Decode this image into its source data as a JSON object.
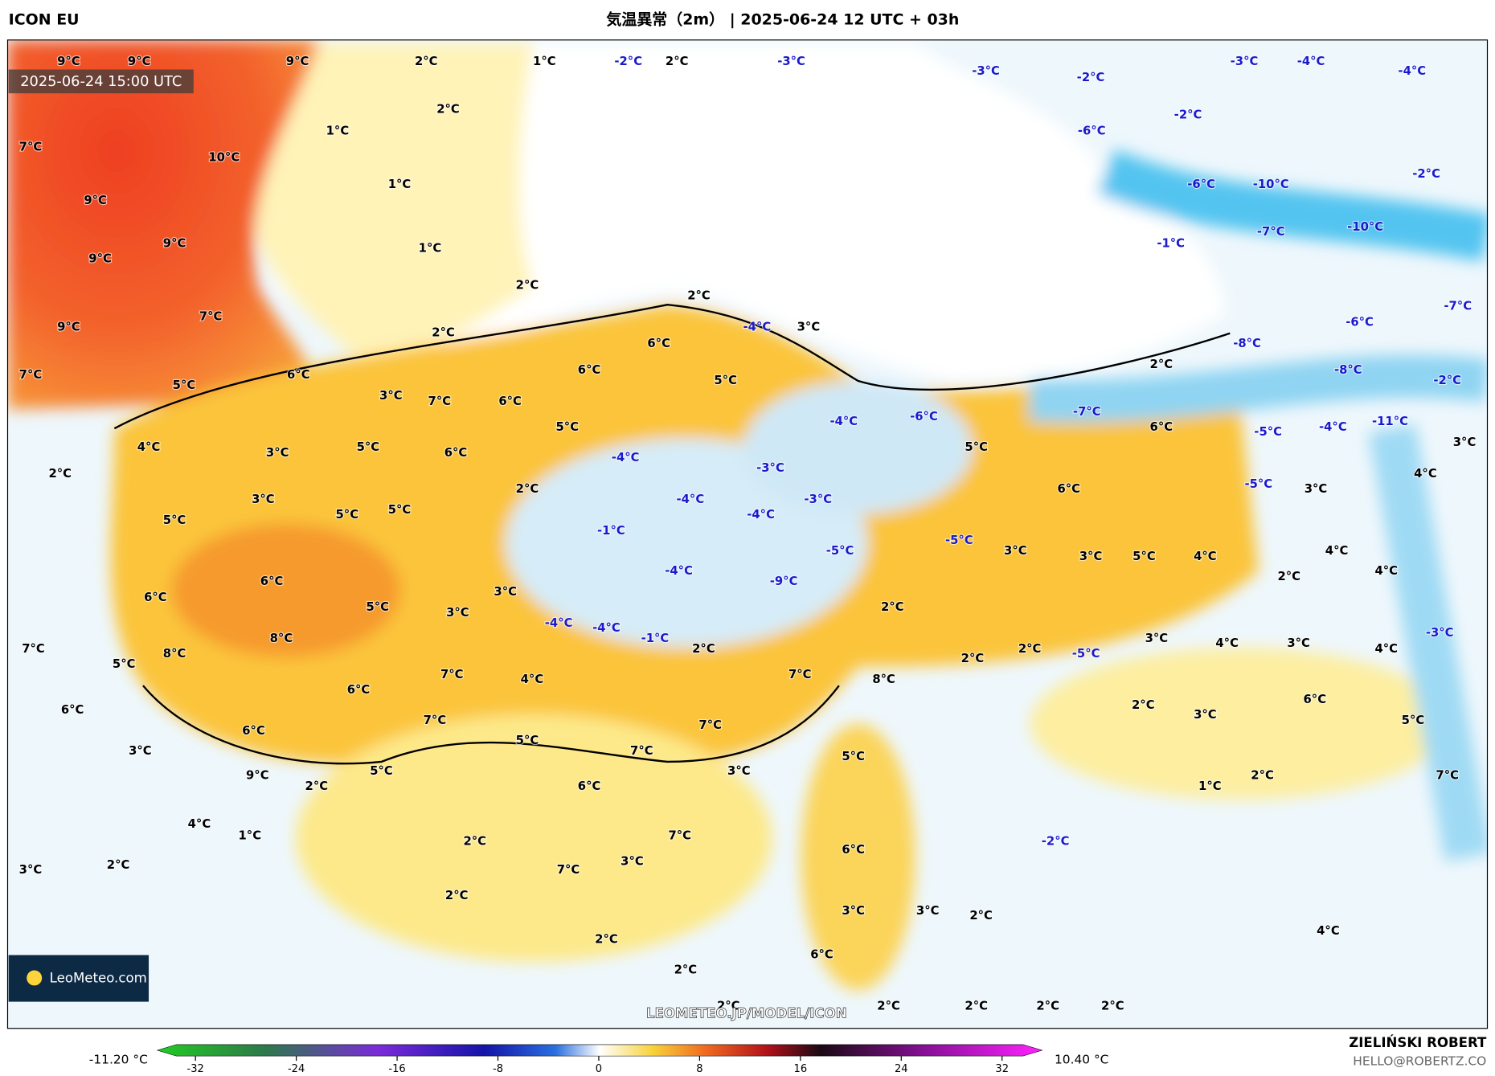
{
  "header": {
    "model": "ICON EU",
    "title": "気温異常（2m） | 2025-06-24 12 UTC + 03h",
    "timestamp": "2025-06-24 15:00 UTC"
  },
  "map": {
    "labels": [
      "9°C",
      "9°C",
      "9°C",
      "2°C",
      "1°C",
      "-2°C",
      "2°C",
      "-3°C",
      "-3°C",
      "-2°C",
      "-3°C",
      "-4°C",
      "-4°C",
      "7°C",
      "1°C",
      "2°C",
      "10°C",
      "-6°C",
      "-2°C",
      "9°C",
      "1°C",
      "-6°C",
      "-10°C",
      "-2°C",
      "9°C",
      "9°C",
      "1°C",
      "-1°C",
      "-7°C",
      "-10°C",
      "2°C",
      "2°C",
      "7°C",
      "-7°C",
      "9°C",
      "2°C",
      "-4°C",
      "3°C",
      "6°C",
      "-6°C",
      "-8°C",
      "7°C",
      "5°C",
      "6°C",
      "6°C",
      "5°C",
      "2°C",
      "-8°C",
      "-2°C",
      "3°C",
      "7°C",
      "6°C",
      "5°C",
      "-4°C",
      "-6°C",
      "-7°C",
      "6°C",
      "-5°C",
      "-4°C",
      "-11°C",
      "3°C",
      "4°C",
      "3°C",
      "5°C",
      "6°C",
      "5°C",
      "2°C",
      "-4°C",
      "-3°C",
      "4°C",
      "-5°C",
      "3°C",
      "6°C",
      "3°C",
      "2°C",
      "-4°C",
      "-3°C",
      "-4°C",
      "5°C",
      "5°C",
      "5°C",
      "-1°C",
      "-5°C",
      "3°C",
      "3°C",
      "5°C",
      "4°C",
      "4°C",
      "-5°C",
      "-4°C",
      "4°C",
      "2°C",
      "6°C",
      "-9°C",
      "6°C",
      "3°C",
      "2°C",
      "5°C",
      "3°C",
      "-4°C",
      "-4°C",
      "-1°C",
      "3°C",
      "4°C",
      "3°C",
      "4°C",
      "-3°C",
      "7°C",
      "8°C",
      "8°C",
      "5°C",
      "2°C",
      "2°C",
      "2°C",
      "-5°C",
      "7°C",
      "4°C",
      "7°C",
      "8°C",
      "6°C",
      "6°C",
      "7°C",
      "2°C",
      "3°C",
      "6°C",
      "5°C",
      "6°C",
      "5°C",
      "7°C",
      "7°C",
      "3°C",
      "5°C",
      "3°C",
      "5°C",
      "9°C",
      "2°C",
      "6°C",
      "1°C",
      "2°C",
      "7°C",
      "4°C",
      "1°C",
      "7°C",
      "2°C",
      "-2°C",
      "6°C",
      "3°C",
      "2°C",
      "7°C",
      "3°C",
      "2°C",
      "3°C",
      "3°C",
      "2°C",
      "4°C",
      "2°C",
      "6°C",
      "2°C",
      "2°C",
      "2°C",
      "2°C",
      "2°C",
      "2°C"
    ],
    "watermark": "LEOMETEO.JP/MODEL/ICON",
    "logo": "LeoMeteo.com"
  },
  "colorbar": {
    "min_label": "-11.20 °C",
    "max_label": "10.40 °C",
    "lim": [
      -32,
      32
    ],
    "ticks": [
      -32,
      -24,
      -16,
      -8,
      0,
      8,
      16,
      24,
      32
    ]
  },
  "footer": {
    "author": "ZIELIŃSKI ROBERT",
    "email": "HELLO@ROBERTZ.CO"
  }
}
